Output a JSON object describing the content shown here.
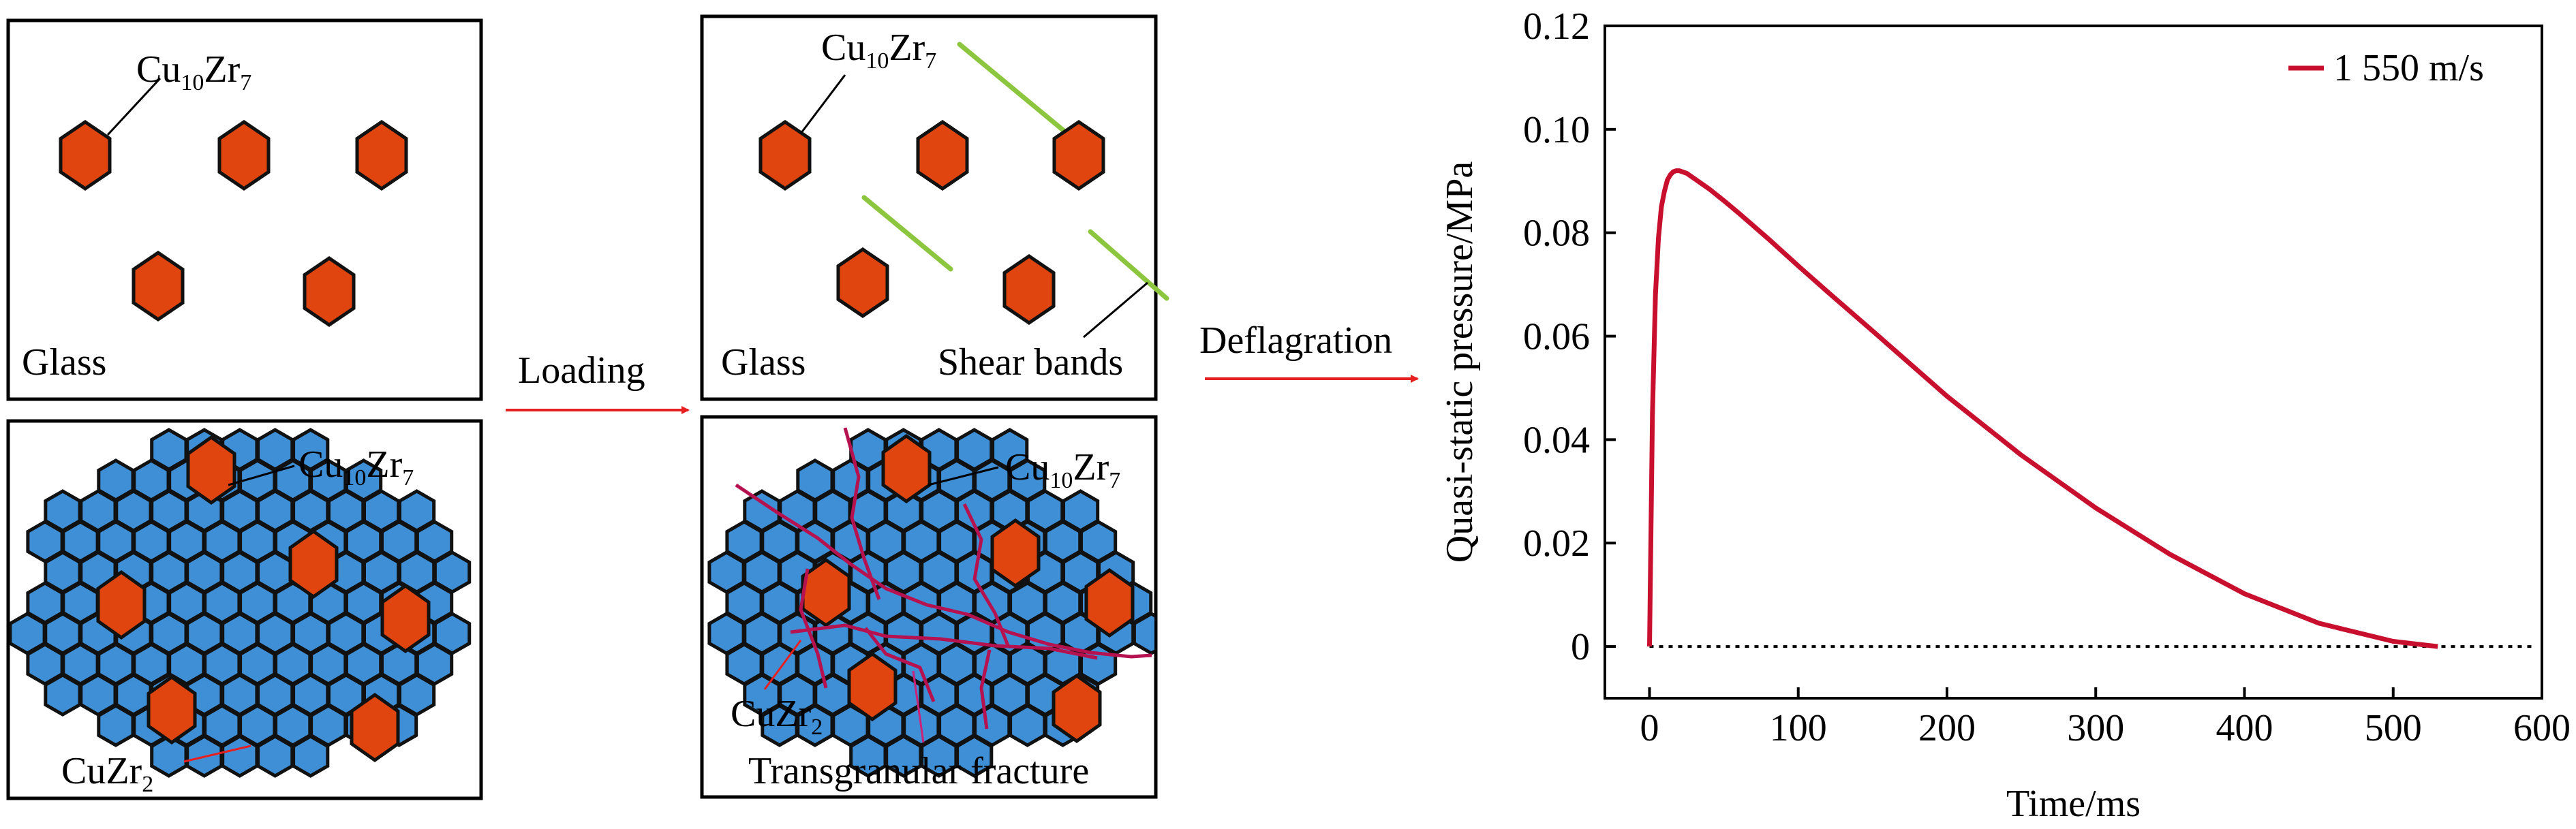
{
  "panels": {
    "before_glass": {
      "phase_label": "Cu",
      "phase_sub": "10",
      "phase_label2": "Zr",
      "phase_sub2": "7",
      "matrix_label": "Glass"
    },
    "before_crystal": {
      "phase_label": "Cu",
      "phase_sub": "10",
      "phase_label2": "Zr",
      "phase_sub2": "7",
      "matrix_phase": "CuZr",
      "matrix_phase_sub": "2"
    },
    "after_glass": {
      "phase_label": "Cu",
      "phase_sub": "10",
      "phase_label2": "Zr",
      "phase_sub2": "7",
      "matrix_label": "Glass",
      "bands_label": "Shear bands"
    },
    "after_crystal": {
      "phase_label": "Cu",
      "phase_sub": "10",
      "phase_label2": "Zr",
      "phase_sub2": "7",
      "matrix_phase": "CuZr",
      "matrix_phase_sub": "2",
      "fracture_label": "Transgranular fracture"
    }
  },
  "arrows": {
    "loading": "Loading",
    "deflagration": "Deflagration"
  },
  "colors": {
    "orange_phase": "#e0450f",
    "blue_phase": "#3f8fd6",
    "shear_band": "#8cc63f",
    "crack": "#b5124f",
    "arrow": "#e62020",
    "curve": "#c8102e"
  },
  "chart_data": {
    "type": "line",
    "xlabel": "Time/ms",
    "ylabel": "Quasi-static pressure/MPa",
    "xlim": [
      -30,
      600
    ],
    "ylim": [
      -0.01,
      0.12
    ],
    "xticks": [
      0,
      100,
      200,
      300,
      400,
      500,
      600
    ],
    "yticks": [
      0,
      0.02,
      0.04,
      0.06,
      0.08,
      0.1,
      0.12
    ],
    "xtick_labels": [
      "0",
      "100",
      "200",
      "300",
      "400",
      "500",
      "600"
    ],
    "ytick_labels": [
      "0",
      "0.02",
      "0.04",
      "0.06",
      "0.08",
      "0.10",
      "0.12"
    ],
    "legend": "top-right",
    "baseline": {
      "y": 0,
      "style": "dotted"
    },
    "series": [
      {
        "name": "1 550 m/s",
        "x": [
          0,
          2,
          4,
          6,
          8,
          10,
          12,
          14,
          16,
          18,
          20,
          25,
          30,
          40,
          50,
          60,
          80,
          100,
          120,
          150,
          200,
          250,
          300,
          350,
          400,
          450,
          500,
          530
        ],
        "y": [
          0,
          0.045,
          0.068,
          0.079,
          0.085,
          0.088,
          0.0902,
          0.0912,
          0.0918,
          0.092,
          0.092,
          0.0915,
          0.0905,
          0.0885,
          0.0862,
          0.0838,
          0.0788,
          0.0736,
          0.0685,
          0.061,
          0.0484,
          0.037,
          0.0268,
          0.0178,
          0.0102,
          0.0045,
          0.001,
          0
        ]
      }
    ]
  }
}
